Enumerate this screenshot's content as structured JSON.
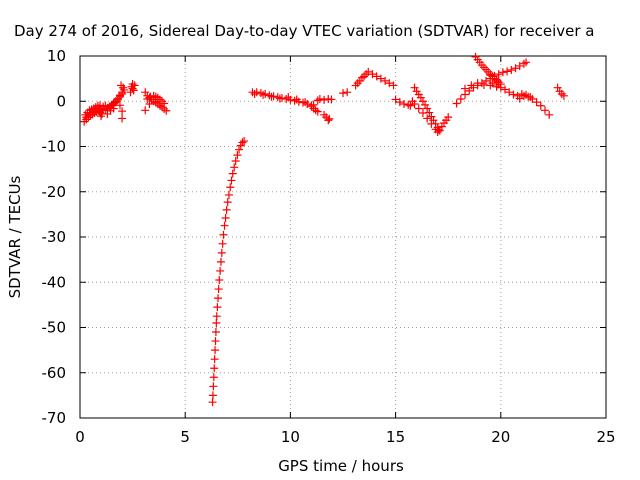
{
  "chart_data": {
    "type": "scatter",
    "title": "Day 274 of 2016, Sidereal Day-to-day VTEC variation (SDTVAR) for receiver a",
    "xlabel": "GPS time / hours",
    "ylabel": "SDTVAR / TECUs",
    "xlim": [
      0,
      25
    ],
    "ylim": [
      -70,
      10
    ],
    "x_ticks": [
      0,
      5,
      10,
      15,
      20,
      25
    ],
    "y_ticks": [
      -70,
      -60,
      -50,
      -40,
      -30,
      -20,
      -10,
      0,
      10
    ],
    "x_tick_labels": [
      "0",
      "5",
      "10",
      "15",
      "20",
      "25"
    ],
    "y_tick_labels": [
      "-70",
      "-60",
      "-50",
      "-40",
      "-30",
      "-20",
      "-10",
      "0",
      "10"
    ],
    "grid": true,
    "marker": "+",
    "color": "#ff0000",
    "series": [
      {
        "points": [
          [
            0.2,
            -4.5
          ],
          [
            0.3,
            -4.0
          ],
          [
            0.4,
            -3.6
          ],
          [
            0.5,
            -3.2
          ],
          [
            0.6,
            -2.9
          ],
          [
            0.7,
            -2.6
          ],
          [
            0.8,
            -2.4
          ],
          [
            0.9,
            -2.2
          ],
          [
            1.0,
            -2.0
          ],
          [
            1.1,
            -1.8
          ],
          [
            0.25,
            -3.0
          ],
          [
            0.35,
            -2.5
          ],
          [
            0.45,
            -2.0
          ],
          [
            0.55,
            -1.8
          ],
          [
            0.65,
            -1.6
          ],
          [
            0.75,
            -1.3
          ],
          [
            0.85,
            -1.0
          ],
          [
            0.95,
            -0.9
          ],
          [
            0.3,
            -3.5
          ],
          [
            0.5,
            -2.6
          ],
          [
            0.7,
            -2.0
          ],
          [
            0.9,
            -1.6
          ],
          [
            1.1,
            -1.2
          ],
          [
            1.2,
            -1.0
          ],
          [
            1.3,
            -1.5
          ],
          [
            1.4,
            -1.2
          ],
          [
            1.5,
            -0.8
          ],
          [
            1.6,
            -0.4
          ],
          [
            1.7,
            0.0
          ],
          [
            1.8,
            0.6
          ],
          [
            1.9,
            1.3
          ],
          [
            2.0,
            2.0
          ],
          [
            1.2,
            -2.0
          ],
          [
            1.3,
            -1.7
          ],
          [
            1.4,
            -1.4
          ],
          [
            1.5,
            -1.0
          ],
          [
            1.6,
            -0.6
          ],
          [
            1.7,
            -0.2
          ],
          [
            1.8,
            0.3
          ],
          [
            1.9,
            1.0
          ],
          [
            2.0,
            1.6
          ],
          [
            2.1,
            2.5
          ],
          [
            1.95,
            3.5
          ],
          [
            2.05,
            3.0
          ],
          [
            1.05,
            -2.8
          ],
          [
            1.0,
            -3.3
          ],
          [
            0.95,
            -2.5
          ],
          [
            1.3,
            -2.8
          ],
          [
            1.45,
            -2.1
          ],
          [
            1.6,
            -1.6
          ],
          [
            1.9,
            -0.9
          ],
          [
            2.0,
            -2.2
          ],
          [
            2.0,
            -3.8
          ],
          [
            2.4,
            2.0
          ],
          [
            2.5,
            2.8
          ],
          [
            2.6,
            3.5
          ],
          [
            2.5,
            3.8
          ],
          [
            2.45,
            3.2
          ],
          [
            2.55,
            2.4
          ],
          [
            3.1,
            -2.0
          ],
          [
            3.3,
            -0.6
          ],
          [
            3.1,
            2.0
          ],
          [
            3.2,
            1.2
          ],
          [
            3.3,
            0.8
          ],
          [
            3.4,
            0.4
          ],
          [
            3.5,
            0.0
          ],
          [
            3.6,
            -0.3
          ],
          [
            3.7,
            -0.6
          ],
          [
            3.8,
            -1.0
          ],
          [
            3.9,
            -1.3
          ],
          [
            4.0,
            -1.7
          ],
          [
            4.1,
            -2.1
          ],
          [
            3.2,
            0.5
          ],
          [
            3.35,
            1.0
          ],
          [
            3.5,
            1.2
          ],
          [
            3.6,
            1.0
          ],
          [
            3.7,
            0.8
          ],
          [
            3.8,
            0.4
          ],
          [
            3.9,
            0.0
          ],
          [
            4.0,
            -0.5
          ],
          [
            6.3,
            -66.5
          ],
          [
            6.32,
            -65.0
          ],
          [
            6.34,
            -63.0
          ],
          [
            6.36,
            -61.0
          ],
          [
            6.38,
            -59.0
          ],
          [
            6.4,
            -57.0
          ],
          [
            6.42,
            -55.0
          ],
          [
            6.44,
            -53.0
          ],
          [
            6.46,
            -51.0
          ],
          [
            6.48,
            -49.0
          ],
          [
            6.5,
            -47.5
          ],
          [
            6.53,
            -45.5
          ],
          [
            6.56,
            -43.5
          ],
          [
            6.59,
            -41.5
          ],
          [
            6.62,
            -39.5
          ],
          [
            6.66,
            -37.5
          ],
          [
            6.7,
            -35.5
          ],
          [
            6.74,
            -33.5
          ],
          [
            6.78,
            -31.5
          ],
          [
            6.82,
            -29.5
          ],
          [
            6.87,
            -27.5
          ],
          [
            6.92,
            -25.8
          ],
          [
            6.97,
            -24.0
          ],
          [
            7.02,
            -22.3
          ],
          [
            7.08,
            -20.7
          ],
          [
            7.14,
            -19.0
          ],
          [
            7.2,
            -17.5
          ],
          [
            7.26,
            -16.0
          ],
          [
            7.33,
            -14.6
          ],
          [
            7.4,
            -13.2
          ],
          [
            7.48,
            -11.9
          ],
          [
            7.56,
            -10.7
          ],
          [
            7.64,
            -9.8
          ],
          [
            7.72,
            -9.1
          ],
          [
            7.8,
            -8.8
          ],
          [
            8.2,
            2.0
          ],
          [
            8.4,
            2.0
          ],
          [
            8.6,
            1.8
          ],
          [
            8.8,
            1.6
          ],
          [
            9.0,
            1.3
          ],
          [
            9.2,
            1.1
          ],
          [
            9.4,
            0.9
          ],
          [
            9.6,
            0.7
          ],
          [
            9.8,
            0.5
          ],
          [
            10.0,
            0.3
          ],
          [
            10.2,
            0.1
          ],
          [
            10.4,
            -0.1
          ],
          [
            10.6,
            -0.3
          ],
          [
            10.8,
            -0.6
          ],
          [
            11.0,
            -0.9
          ],
          [
            8.3,
            1.6
          ],
          [
            8.7,
            1.4
          ],
          [
            9.1,
            1.0
          ],
          [
            9.5,
            0.6
          ],
          [
            9.9,
            0.9
          ],
          [
            10.3,
            0.4
          ],
          [
            10.7,
            -0.2
          ],
          [
            11.0,
            -1.2
          ],
          [
            11.1,
            -1.6
          ],
          [
            11.2,
            -2.0
          ],
          [
            11.3,
            -2.3
          ],
          [
            11.1,
            -0.8
          ],
          [
            11.3,
            0.2
          ],
          [
            11.4,
            0.5
          ],
          [
            11.6,
            -3.0
          ],
          [
            11.7,
            -3.5
          ],
          [
            11.8,
            -4.2
          ],
          [
            11.85,
            -3.9
          ],
          [
            11.6,
            0.3
          ],
          [
            11.8,
            0.5
          ],
          [
            11.95,
            0.4
          ],
          [
            12.5,
            1.8
          ],
          [
            12.7,
            2.0
          ],
          [
            13.1,
            3.5
          ],
          [
            13.3,
            4.5
          ],
          [
            13.5,
            5.5
          ],
          [
            13.7,
            6.5
          ],
          [
            13.9,
            6.0
          ],
          [
            14.1,
            5.5
          ],
          [
            14.3,
            5.0
          ],
          [
            14.5,
            4.5
          ],
          [
            14.7,
            4.0
          ],
          [
            14.9,
            3.5
          ],
          [
            13.2,
            4.0
          ],
          [
            13.4,
            5.2
          ],
          [
            13.6,
            6.0
          ],
          [
            15.0,
            0.4
          ],
          [
            15.2,
            -0.2
          ],
          [
            15.4,
            -0.6
          ],
          [
            15.6,
            -0.8
          ],
          [
            15.7,
            -1.0
          ],
          [
            15.8,
            0.0
          ],
          [
            15.9,
            -0.6
          ],
          [
            16.1,
            -1.6
          ],
          [
            16.3,
            -2.6
          ],
          [
            16.5,
            -3.8
          ],
          [
            16.7,
            -5.0
          ],
          [
            16.9,
            -6.2
          ],
          [
            17.0,
            -6.8
          ],
          [
            17.1,
            -6.5
          ],
          [
            17.2,
            -5.6
          ],
          [
            17.3,
            -4.8
          ],
          [
            17.4,
            -4.2
          ],
          [
            17.5,
            -3.5
          ],
          [
            15.9,
            3.0
          ],
          [
            16.0,
            2.2
          ],
          [
            16.1,
            1.5
          ],
          [
            16.2,
            0.8
          ],
          [
            16.3,
            0.0
          ],
          [
            16.4,
            -0.8
          ],
          [
            16.5,
            -1.6
          ],
          [
            16.6,
            -2.5
          ],
          [
            16.7,
            -3.4
          ],
          [
            16.8,
            -4.2
          ],
          [
            16.9,
            -5.0
          ],
          [
            17.0,
            -5.8
          ],
          [
            17.05,
            -6.3
          ],
          [
            17.9,
            -0.5
          ],
          [
            18.1,
            0.5
          ],
          [
            18.3,
            1.5
          ],
          [
            18.5,
            2.3
          ],
          [
            18.7,
            3.0
          ],
          [
            18.9,
            3.5
          ],
          [
            19.1,
            4.0
          ],
          [
            19.3,
            4.5
          ],
          [
            19.5,
            5.0
          ],
          [
            19.7,
            5.6
          ],
          [
            19.9,
            6.0
          ],
          [
            20.1,
            6.4
          ],
          [
            20.3,
            6.6
          ],
          [
            20.5,
            6.9
          ],
          [
            20.7,
            7.3
          ],
          [
            20.9,
            7.8
          ],
          [
            21.1,
            8.3
          ],
          [
            21.2,
            8.6
          ],
          [
            18.3,
            2.8
          ],
          [
            18.6,
            3.5
          ],
          [
            18.9,
            4.0
          ],
          [
            19.2,
            3.6
          ],
          [
            19.5,
            3.5
          ],
          [
            19.8,
            3.2
          ],
          [
            20.0,
            3.0
          ],
          [
            20.2,
            2.6
          ],
          [
            20.4,
            2.0
          ],
          [
            20.6,
            1.5
          ],
          [
            20.8,
            1.2
          ],
          [
            18.8,
            9.8
          ],
          [
            18.9,
            9.2
          ],
          [
            19.0,
            8.6
          ],
          [
            19.1,
            8.0
          ],
          [
            19.2,
            7.5
          ],
          [
            19.3,
            7.0
          ],
          [
            19.4,
            6.5
          ],
          [
            19.5,
            6.0
          ],
          [
            19.6,
            5.5
          ],
          [
            19.7,
            5.0
          ],
          [
            19.8,
            4.5
          ],
          [
            19.9,
            4.2
          ],
          [
            20.0,
            3.8
          ],
          [
            19.5,
            5.8
          ],
          [
            19.8,
            4.8
          ],
          [
            19.6,
            4.0
          ],
          [
            19.8,
            3.6
          ],
          [
            20.9,
            0.6
          ],
          [
            21.1,
            1.2
          ],
          [
            21.3,
            1.0
          ],
          [
            21.5,
            0.5
          ],
          [
            21.7,
            -0.2
          ],
          [
            21.9,
            -1.0
          ],
          [
            22.1,
            -2.0
          ],
          [
            22.3,
            -3.0
          ],
          [
            21.0,
            1.6
          ],
          [
            21.2,
            1.4
          ],
          [
            21.4,
            0.9
          ],
          [
            22.7,
            3.0
          ],
          [
            22.8,
            2.2
          ],
          [
            22.9,
            1.6
          ],
          [
            23.0,
            1.2
          ]
        ]
      }
    ]
  }
}
